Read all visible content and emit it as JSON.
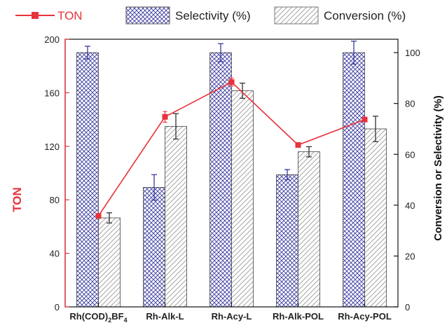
{
  "chart_data": {
    "type": "bar",
    "categories": [
      "Rh(COD)",
      "Rh-Alk-L",
      "Rh-Acy-L",
      "Rh-Alk-POL",
      "Rh-Acy-POL"
    ],
    "category0_subscript_text": {
      "sub1": "2",
      "mid": "BF",
      "sub2": "4"
    },
    "series": [
      {
        "name": "Selectivity (%)",
        "axis": "right",
        "kind": "bar",
        "pattern": "crosshatch",
        "color": "#3a3aa0",
        "values": [
          100,
          47,
          100,
          52,
          100
        ],
        "errors": [
          2.5,
          5,
          3.5,
          2,
          4.5
        ]
      },
      {
        "name": "Conversion (%)",
        "axis": "right",
        "kind": "bar",
        "pattern": "diagonal",
        "color": "#aaaaaa",
        "values": [
          35,
          71,
          85,
          61,
          70
        ],
        "errors": [
          2,
          5,
          3,
          2,
          5
        ]
      },
      {
        "name": "TON",
        "axis": "left",
        "kind": "line",
        "color": "#e8323c",
        "values": [
          68,
          142,
          168,
          121,
          140
        ],
        "errors": [
          0,
          4,
          3,
          0,
          0
        ]
      }
    ],
    "y_left": {
      "label": "TON",
      "ylim": [
        0,
        200
      ],
      "ticks": [
        0,
        40,
        80,
        120,
        160,
        200
      ],
      "color": "#e8323c"
    },
    "y_right": {
      "label": "Conversion or Selectivity (%)",
      "ylim": [
        0,
        105.26
      ],
      "ticks": [
        0,
        20,
        40,
        60,
        80,
        100
      ]
    },
    "legend_position": "top",
    "grid": false
  }
}
